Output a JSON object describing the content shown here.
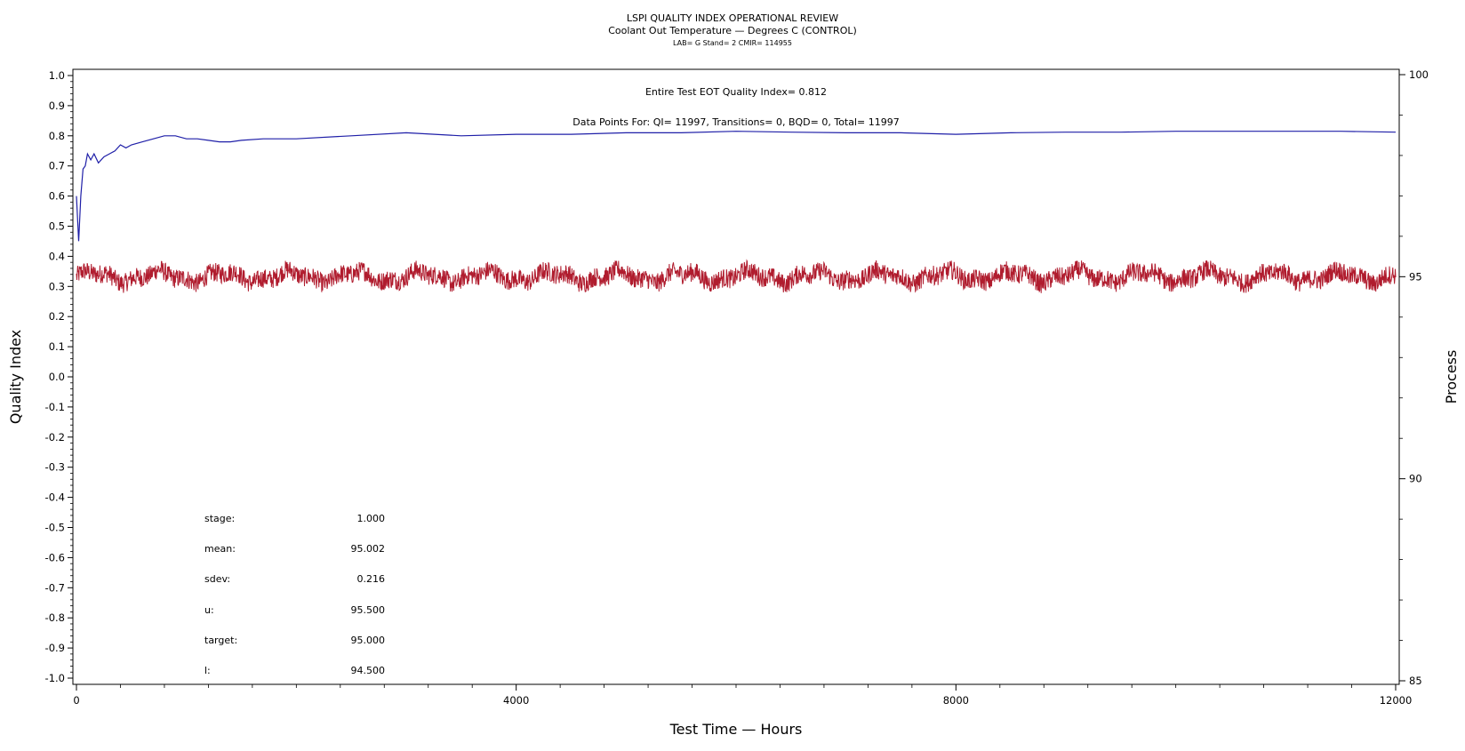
{
  "chart_data": {
    "type": "line",
    "title": "LSPI QUALITY INDEX OPERATIONAL REVIEW",
    "subtitle": "Coolant Out Temperature — Degrees C (CONTROL)",
    "subtitle2": "LAB= G Stand= 2 CMIR= 114955",
    "xlabel": "Test Time — Hours",
    "ylabel_left": "Quality Index",
    "ylabel_right": "Process",
    "xlim": [
      0,
      12000
    ],
    "ylim_left": [
      -1.0,
      1.0
    ],
    "ylim_right": [
      85,
      100
    ],
    "x_ticks": [
      "0",
      "4000",
      "8000",
      "12000"
    ],
    "y_left_ticks": [
      "1.0",
      "0.9",
      "0.8",
      "0.7",
      "0.6",
      "0.5",
      "0.4",
      "0.3",
      "0.2",
      "0.1",
      "0.0",
      "-0.1",
      "-0.2",
      "-0.3",
      "-0.4",
      "-0.5",
      "-0.6",
      "-0.7",
      "-0.8",
      "-0.9",
      "-1.0"
    ],
    "y_right_ticks": [
      "100",
      "95",
      "90",
      "85"
    ],
    "annotations": {
      "quality_index": "Entire Test EOT Quality Index=   0.812",
      "data_points": "Data Points For: QI= 11997, Transitions=     0, BQD=     0, Total= 11997"
    },
    "stats": [
      {
        "label": "stage:",
        "value": "1.000"
      },
      {
        "label": "mean:",
        "value": "95.002"
      },
      {
        "label": "sdev:",
        "value": "0.216"
      },
      {
        "label": "u:",
        "value": "95.500"
      },
      {
        "label": "target:",
        "value": "95.000"
      },
      {
        "label": "l:",
        "value": "94.500"
      }
    ],
    "series": [
      {
        "axis": "left",
        "color": "#1f1fa8",
        "x": [
          0,
          20,
          40,
          60,
          80,
          100,
          130,
          160,
          200,
          250,
          300,
          350,
          400,
          450,
          500,
          600,
          700,
          800,
          900,
          1000,
          1100,
          1200,
          1300,
          1400,
          1500,
          1700,
          2000,
          2500,
          3000,
          3500,
          4000,
          4500,
          5000,
          5500,
          6000,
          6500,
          7000,
          7500,
          8000,
          8500,
          9000,
          9500,
          10000,
          10500,
          11000,
          11500,
          12000
        ],
        "values": [
          0.6,
          0.45,
          0.6,
          0.69,
          0.7,
          0.74,
          0.72,
          0.74,
          0.71,
          0.73,
          0.74,
          0.75,
          0.77,
          0.76,
          0.77,
          0.78,
          0.79,
          0.8,
          0.8,
          0.79,
          0.79,
          0.785,
          0.78,
          0.78,
          0.785,
          0.79,
          0.79,
          0.8,
          0.81,
          0.8,
          0.805,
          0.805,
          0.81,
          0.81,
          0.815,
          0.812,
          0.81,
          0.81,
          0.805,
          0.81,
          0.812,
          0.812,
          0.815,
          0.815,
          0.815,
          0.815,
          0.812
        ]
      },
      {
        "axis": "right",
        "color": "#b01c2e",
        "mean": 95.002,
        "sdev": 0.216,
        "n_points": 11997,
        "x_range": [
          0,
          12000
        ]
      }
    ]
  }
}
